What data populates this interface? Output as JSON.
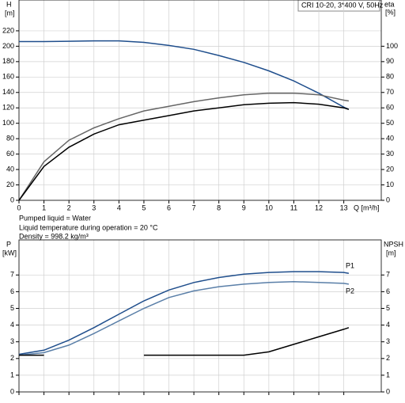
{
  "chart_data": [
    {
      "type": "line",
      "title": "CRI 10-20, 3*400 V, 50Hz",
      "ylabel": "H",
      "yunit": "[m]",
      "y2label": "eta",
      "y2unit": "[%]",
      "xlabel": "Q [m³/h]",
      "annotations": [
        "Pumped liquid = Water",
        "Liquid temperature during operation = 20 °C",
        "Density = 998.2 kg/m³"
      ],
      "x": [
        0,
        1,
        2,
        3,
        4,
        5,
        6,
        7,
        8,
        9,
        10,
        11,
        12,
        13,
        13.2
      ],
      "xlim": [
        0,
        14.5
      ],
      "xticks": [
        0,
        1,
        2,
        3,
        4,
        5,
        6,
        7,
        8,
        9,
        10,
        11,
        12,
        13
      ],
      "ylim": [
        0,
        260
      ],
      "yticks": [
        0,
        20,
        40,
        60,
        80,
        100,
        120,
        140,
        160,
        180,
        200,
        220
      ],
      "y2lim": [
        0,
        130
      ],
      "y2ticks": [
        0,
        10,
        20,
        30,
        40,
        50,
        60,
        70,
        80,
        90,
        100
      ],
      "grid": true,
      "series": [
        {
          "color": "#1f4e8c",
          "values": [
            206,
            206,
            206.5,
            207,
            207,
            205,
            201,
            196,
            188,
            179,
            168,
            155,
            139,
            121,
            118
          ]
        },
        {
          "color": "#666666",
          "axis": "y2",
          "values": [
            0,
            25,
            39,
            47,
            53,
            58,
            61,
            64,
            66.5,
            68.5,
            69.5,
            69.5,
            68.5,
            65,
            64.5
          ]
        },
        {
          "color": "#000000",
          "axis": "y2",
          "values": [
            0,
            22,
            34.5,
            43,
            49,
            52,
            55,
            58,
            60,
            62,
            63,
            63.4,
            62.4,
            60,
            59
          ]
        }
      ]
    },
    {
      "type": "line",
      "ylabel": "P",
      "yunit": "[kW]",
      "y2label": "NPSH",
      "y2unit": "[m]",
      "x": [
        0,
        1,
        2,
        3,
        4,
        5,
        6,
        7,
        8,
        9,
        10,
        11,
        12,
        13,
        13.2
      ],
      "xlim": [
        0,
        14.5
      ],
      "xticks": [
        0,
        1,
        2,
        3,
        4,
        5,
        6,
        7,
        8,
        9,
        10,
        11,
        12,
        13
      ],
      "ylim": [
        0,
        9.1
      ],
      "yticks": [
        0,
        1,
        2,
        3,
        4,
        5,
        6,
        7
      ],
      "y2lim": [
        0,
        9.1
      ],
      "y2ticks": [
        0,
        1,
        2,
        3,
        4,
        5,
        6,
        7
      ],
      "grid": true,
      "series": [
        {
          "name": "P1",
          "color": "#1f4e8c",
          "values": [
            2.25,
            2.5,
            3.1,
            3.85,
            4.65,
            5.45,
            6.1,
            6.55,
            6.85,
            7.05,
            7.15,
            7.2,
            7.2,
            7.15,
            7.1
          ]
        },
        {
          "name": "P2",
          "color": "#5a7fa8",
          "values": [
            2.2,
            2.35,
            2.8,
            3.5,
            4.25,
            5.0,
            5.65,
            6.05,
            6.3,
            6.45,
            6.55,
            6.6,
            6.55,
            6.5,
            6.45
          ]
        },
        {
          "color": "#000000",
          "axis": "y2",
          "values": [
            2.2,
            2.2,
            null,
            null,
            null,
            2.2,
            2.2,
            2.2,
            2.2,
            2.2,
            2.4,
            2.85,
            3.3,
            3.75,
            3.85
          ]
        }
      ]
    }
  ]
}
